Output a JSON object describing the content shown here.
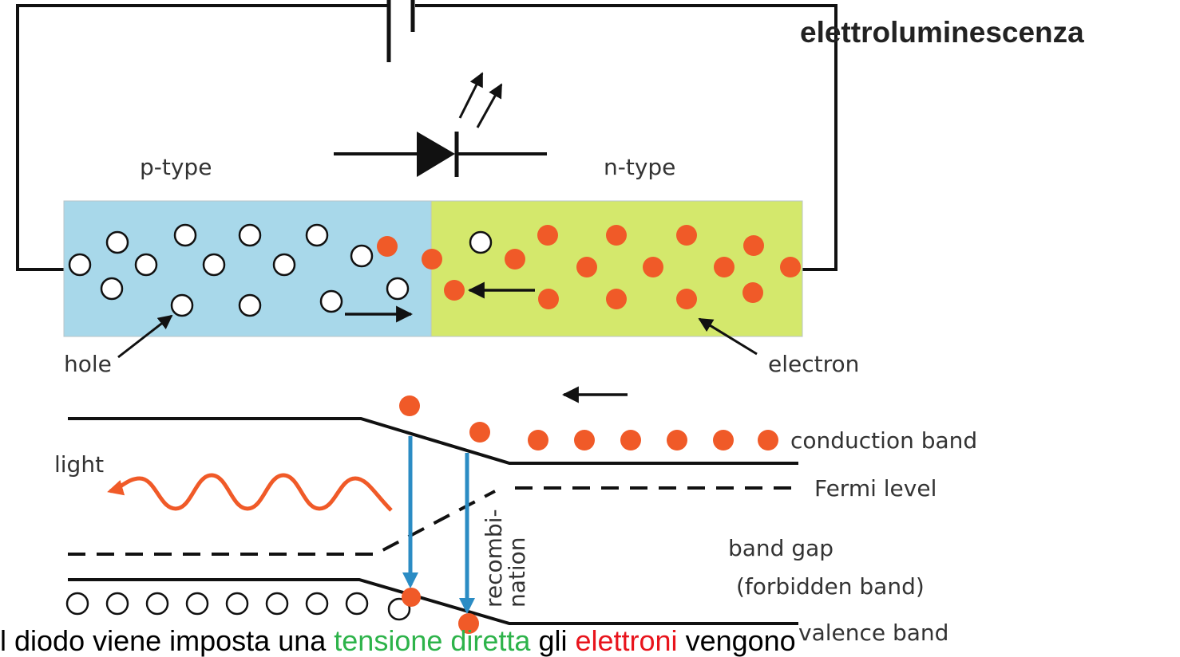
{
  "title": "elettroluminescenza",
  "labels": {
    "p_type": "p-type",
    "n_type": "n-type",
    "hole": "hole",
    "electron": "electron",
    "light": "light",
    "conduction_band": "conduction band",
    "fermi_level": "Fermi level",
    "band_gap_line1": "band gap",
    "band_gap_line2": "(forbidden band)",
    "recombination_line1": "recombi-",
    "recombination_line2": "nation",
    "valence_band": "valence band"
  },
  "caption": {
    "part1": "l diodo viene imposta una ",
    "part2": "tensione diretta",
    "part3": " gli ",
    "part4": "elettroni",
    "part5": " vengono"
  },
  "colors": {
    "p_region": "#a8d8ea",
    "n_region": "#d4e86c",
    "electron": "#f05a28",
    "hole_fill": "#ffffff",
    "recombination_arrow": "#2b8cc4",
    "light_wave": "#f05a28",
    "caption_green": "#2db34a",
    "caption_red": "#e8141c"
  },
  "icons": {
    "diode": "diode-symbol-icon",
    "emission": "light-emission-arrows-icon",
    "battery": "battery-gap-icon"
  }
}
